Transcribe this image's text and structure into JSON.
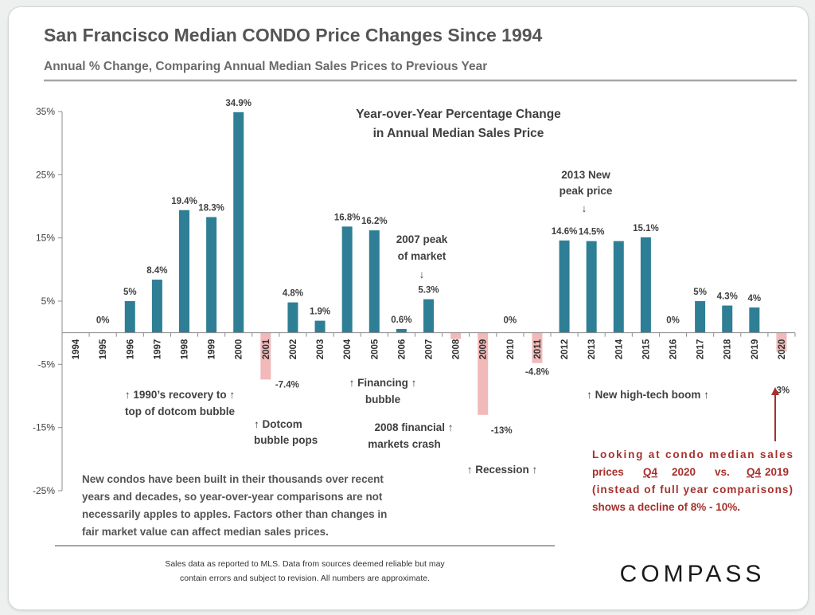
{
  "colors": {
    "positive_bar": "#2e7f95",
    "negative_bar": "#f1b9b9",
    "rule": "#a6a6a6",
    "red_text": "#a6302c"
  },
  "chart_data": {
    "type": "bar",
    "title": "San Francisco Median CONDO Price Changes Since 1994",
    "subtitle": "Annual % Change, Comparing Annual Median Sales Prices to Previous Year",
    "inner_title": [
      "Year-over-Year Percentage Change",
      "in Annual Median Sales Price"
    ],
    "categories": [
      "1994",
      "1995",
      "1996",
      "1997",
      "1998",
      "1999",
      "2000",
      "2001",
      "2002",
      "2003",
      "2004",
      "2005",
      "2006",
      "2007",
      "2008",
      "2009",
      "2010",
      "2011",
      "2012",
      "2013",
      "2014",
      "2015",
      "2016",
      "2017",
      "2018",
      "2019",
      "2020"
    ],
    "values": [
      null,
      0,
      5,
      8.4,
      19.4,
      18.3,
      34.9,
      -7.4,
      4.8,
      1.9,
      16.8,
      16.2,
      0.6,
      5.3,
      -1,
      -13,
      0,
      -4.8,
      14.6,
      14.5,
      14.5,
      15.1,
      0,
      5,
      4.3,
      4,
      -3
    ],
    "data_labels": [
      "",
      "0%",
      "5%",
      "8.4%",
      "19.4%",
      "18.3%",
      "34.9%",
      "-7.4%",
      "4.8%",
      "1.9%",
      "16.8%",
      "16.2%",
      "0.6%",
      "5.3%",
      "",
      "-13%",
      "0%",
      "-4.8%",
      "14.6%",
      "14.5%",
      "",
      "15.1%",
      "0%",
      "5%",
      "4.3%",
      "4%",
      "-3%"
    ],
    "y_ticks": [
      35,
      25,
      15,
      5,
      -5,
      -15,
      -25
    ],
    "y_tick_labels": [
      "35%",
      "25%",
      "15%",
      "5%",
      "-5%",
      "-15%",
      "-25%"
    ],
    "ylim": [
      -25,
      35
    ],
    "xlabel": "",
    "ylabel": "",
    "grid": false,
    "legend": "none"
  },
  "annotations": {
    "recovery": [
      "↑ 1990’s recovery to ↑",
      "top of dotcom bubble"
    ],
    "dotcom": [
      "↑ Dotcom",
      "bubble pops"
    ],
    "financing": [
      "↑ Financing ↑",
      "bubble"
    ],
    "peak_2007": [
      "2007 peak",
      "of market",
      "↓"
    ],
    "crash_2008": [
      "2008 financial ↑",
      "markets crash"
    ],
    "recession": "↑ Recession ↑",
    "peak_2013": [
      "2013 New",
      "peak price",
      "↓"
    ],
    "tech_boom": "↑ New high-tech boom ↑"
  },
  "notes": {
    "condo_note": [
      "New condos have been built in their thousands over recent",
      "years and decades, so year-over-year comparisons are not",
      "necessarily apples to apples. Factors other than changes in",
      "fair market value can affect median sales prices."
    ],
    "q4_note": {
      "line1": "Looking at condo median sales",
      "line2_parts": [
        "prices",
        "Q4",
        "2020",
        "vs.",
        "Q4",
        "2019"
      ],
      "line3": "(instead of full year comparisons)",
      "line4": "shows a decline of 8% - 10%."
    }
  },
  "footer": [
    "Sales data as reported to MLS. Data from sources deemed reliable but may",
    "contain errors and subject to revision. All numbers are approximate."
  ],
  "logo": "COMPASS"
}
